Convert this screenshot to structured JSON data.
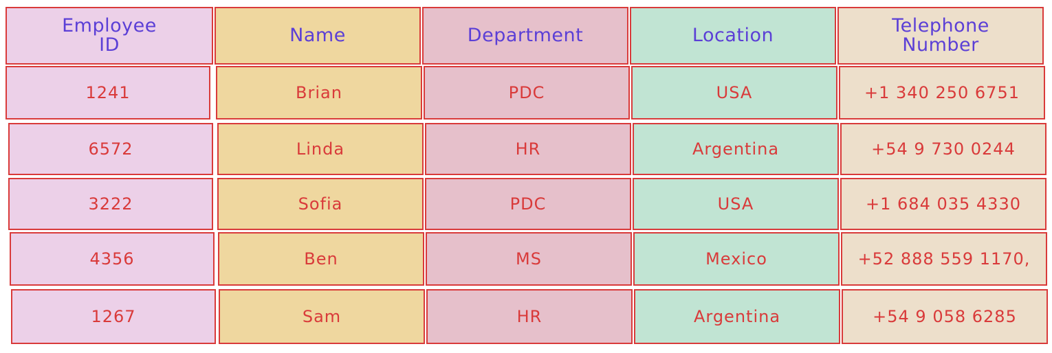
{
  "colors": {
    "col1": "#ecd0e8",
    "col2": "#efd79f",
    "col3": "#e6c0cb",
    "col4": "#c1e4d3",
    "col5": "#eddfcb",
    "header_text": "#5b3fd6",
    "cell_text": "#d93a3a",
    "border": "#d93a3a"
  },
  "table": {
    "headers": [
      "Employee\nID",
      "Name",
      "Department",
      "Location",
      "Telephone\nNumber"
    ],
    "rows": [
      [
        "1241",
        "Brian",
        "PDC",
        "USA",
        "+1 340 250 6751"
      ],
      [
        "6572",
        "Linda",
        "HR",
        "Argentina",
        "+54 9 730 0244"
      ],
      [
        "3222",
        "Sofia",
        "PDC",
        "USA",
        "+1 684 035 4330"
      ],
      [
        "4356",
        "Ben",
        "MS",
        "Mexico",
        "+52 888 559 1170,"
      ],
      [
        "1267",
        "Sam",
        "HR",
        "Argentina",
        "+54 9 058 6285"
      ]
    ]
  }
}
